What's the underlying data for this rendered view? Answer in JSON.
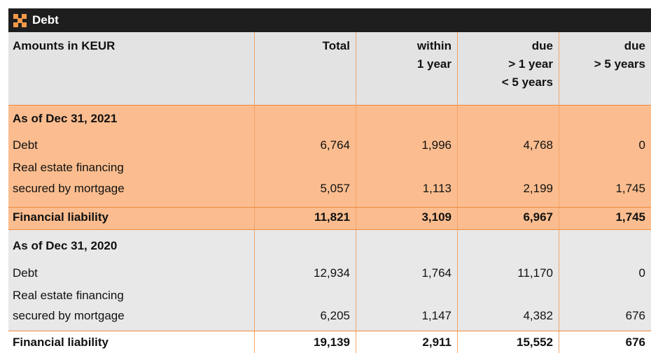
{
  "header": {
    "title": "Debt"
  },
  "table": {
    "columns": [
      [
        "Amounts in KEUR"
      ],
      [
        "Total"
      ],
      [
        "within",
        "1 year"
      ],
      [
        "due",
        "> 1 year",
        "< 5 years"
      ],
      [
        "due",
        "> 5 years"
      ]
    ],
    "sections": [
      {
        "heading": "As of Dec 31, 2021",
        "rows": [
          {
            "label": [
              "Debt"
            ],
            "values": [
              "6,764",
              "1,996",
              "4,768",
              "0"
            ]
          },
          {
            "label": [
              "Real estate financing",
              "secured by mortgage"
            ],
            "values": [
              "5,057",
              "1,113",
              "2,199",
              "1,745"
            ]
          }
        ],
        "total": {
          "label": "Financial liability",
          "values": [
            "11,821",
            "3,109",
            "6,967",
            "1,745"
          ]
        }
      },
      {
        "heading": "As of Dec 31, 2020",
        "rows": [
          {
            "label": [
              "Debt"
            ],
            "values": [
              "12,934",
              "1,764",
              "11,170",
              "0"
            ]
          },
          {
            "label": [
              "Real estate financing",
              "secured by mortgage"
            ],
            "values": [
              "6,205",
              "1,147",
              "4,382",
              "676"
            ]
          }
        ],
        "total": {
          "label": "Financial liability",
          "values": [
            "19,139",
            "2,911",
            "15,552",
            "676"
          ]
        }
      }
    ]
  }
}
